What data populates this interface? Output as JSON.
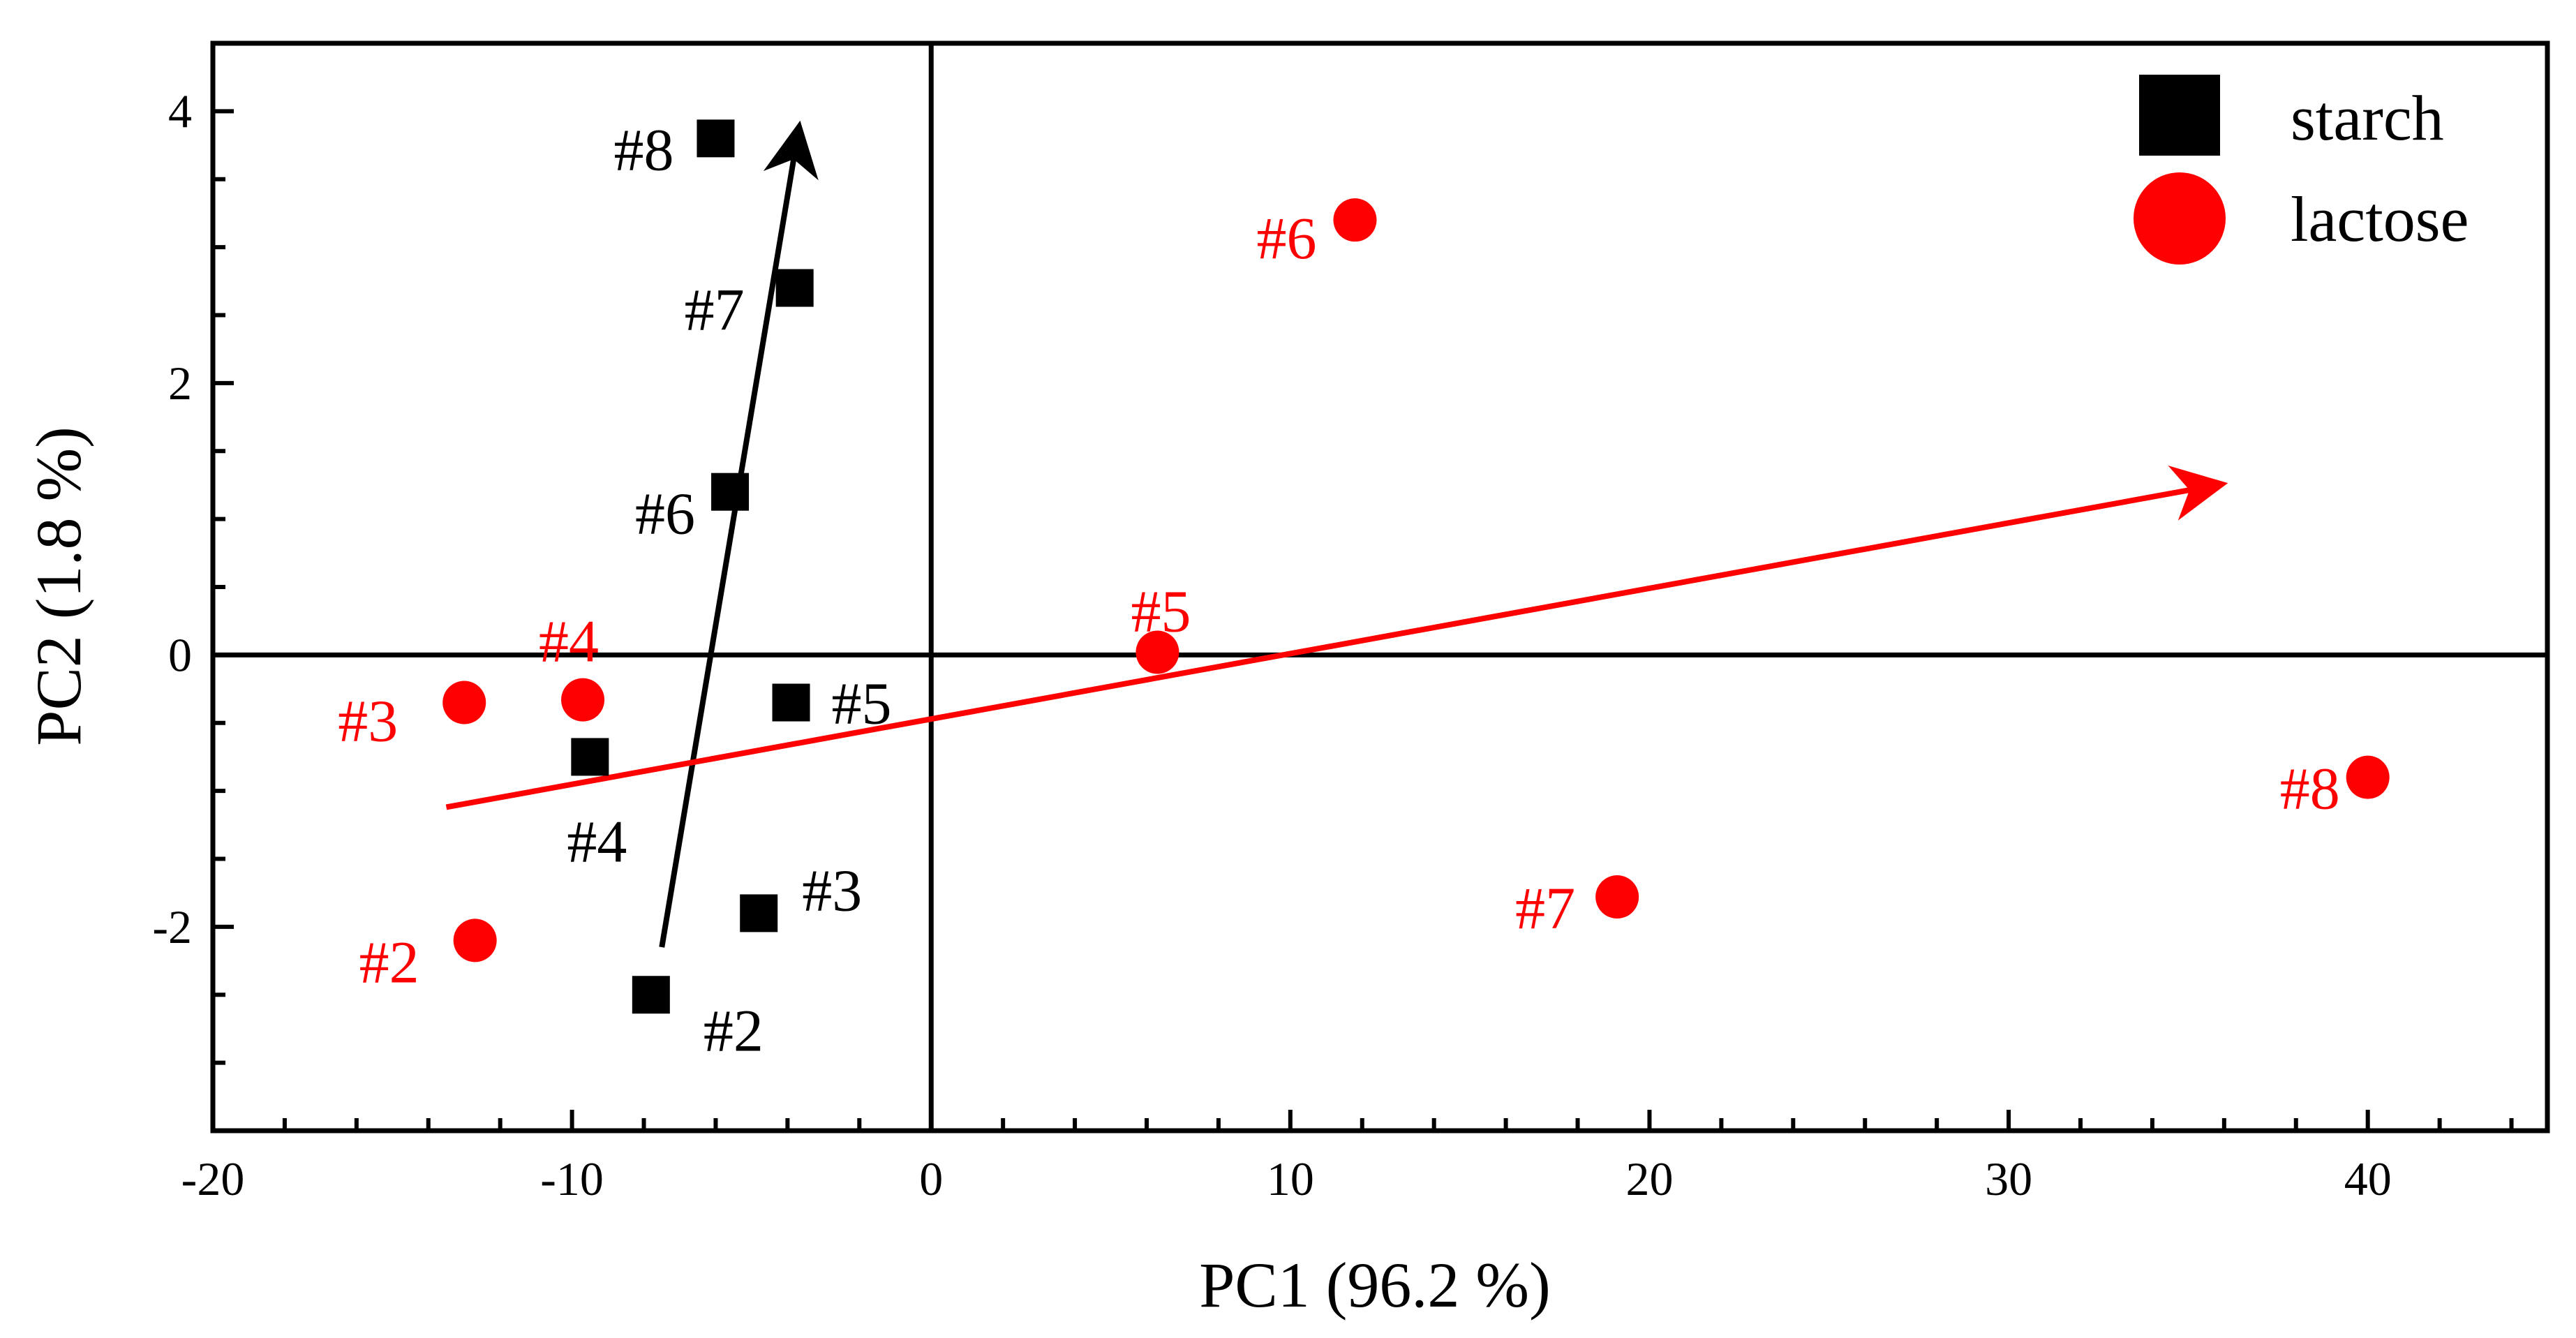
{
  "chart_data": {
    "type": "scatter",
    "xlabel": "PC1 (96.2 %)",
    "ylabel": "PC2 (1.8 %)",
    "xlim": [
      -20,
      45
    ],
    "ylim": [
      -3.5,
      4.5
    ],
    "xticks": [
      -20,
      -10,
      0,
      10,
      20,
      30,
      40
    ],
    "yticks": [
      -2,
      0,
      2,
      4
    ],
    "zero_lines": true,
    "grid": false,
    "legend_position": "top-right",
    "series": [
      {
        "name": "starch",
        "marker": "square",
        "color": "#000000",
        "points": [
          {
            "label": "#2",
            "x": -7.8,
            "y": -2.5
          },
          {
            "label": "#3",
            "x": -4.8,
            "y": -1.9
          },
          {
            "label": "#4",
            "x": -9.5,
            "y": -0.75
          },
          {
            "label": "#5",
            "x": -3.9,
            "y": -0.35
          },
          {
            "label": "#6",
            "x": -5.6,
            "y": 1.2
          },
          {
            "label": "#7",
            "x": -3.8,
            "y": 2.7
          },
          {
            "label": "#8",
            "x": -6.0,
            "y": 3.8
          }
        ],
        "arrow": {
          "from": [
            -7.5,
            -2.15
          ],
          "to": [
            -3.7,
            3.85
          ]
        }
      },
      {
        "name": "lactose",
        "marker": "circle",
        "color": "#ff0000",
        "points": [
          {
            "label": "#2",
            "x": -12.7,
            "y": -2.1
          },
          {
            "label": "#3",
            "x": -13.0,
            "y": -0.35
          },
          {
            "label": "#4",
            "x": -9.7,
            "y": -0.33
          },
          {
            "label": "#5",
            "x": 6.3,
            "y": 0.02
          },
          {
            "label": "#6",
            "x": 11.8,
            "y": 3.2
          },
          {
            "label": "#7",
            "x": 19.1,
            "y": -1.78
          },
          {
            "label": "#8",
            "x": 40.0,
            "y": -0.9
          }
        ],
        "arrow": {
          "from": [
            -13.5,
            -1.12
          ],
          "to": [
            35.8,
            1.25
          ]
        }
      }
    ]
  }
}
